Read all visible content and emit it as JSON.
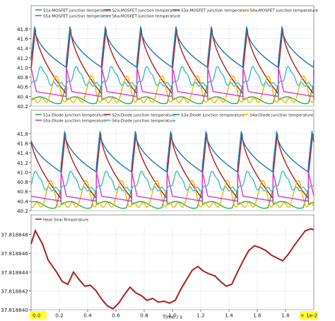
{
  "chart_data": [
    {
      "type": "line",
      "title": "",
      "ylim": [
        40.2,
        41.9
      ],
      "y_ticks": [
        "41.8",
        "41.6",
        "41.4",
        "41.2",
        "41.0",
        "40.8",
        "40.6",
        "40.4",
        "40.2"
      ],
      "legend": [
        "S1a:MOSFET junction temperature",
        "S2a:MOSFET junction temperature",
        "S3a:MOSFET junction temperature",
        "S4a:MOSFET junction temperature",
        "S5a:MOSFET junction temperature",
        "S6a:MOSFET junction temperature"
      ],
      "series": [
        {
          "name": "S1a:MOSFET junction temperature",
          "color": "#22b14c"
        },
        {
          "name": "S2a:MOSFET junction temperature",
          "color": "#b01e1e"
        },
        {
          "name": "S3a:MOSFET junction temperature",
          "color": "#1f77b4"
        },
        {
          "name": "S4a:MOSFET junction temperature",
          "color": "#f2b705"
        },
        {
          "name": "S5a:MOSFET junction temperature",
          "color": "#d63ad6"
        },
        {
          "name": "S6a:MOSFET junction temperature",
          "color": "#3dbfbf"
        }
      ],
      "periods": 8
    },
    {
      "type": "line",
      "title": "",
      "ylim": [
        40.2,
        41.9
      ],
      "y_ticks": [
        "41.8",
        "41.6",
        "41.4",
        "41.2",
        "41.0",
        "40.8",
        "40.6",
        "40.4",
        "40.2"
      ],
      "legend": [
        "S1a:Diode junction temperature",
        "S2a:Diode junction temperature",
        "S3a:Diode junction temperature",
        "S4a:Diode junction temperature",
        "S5a:Diode junction temperature",
        "S6a:Diode junction temperature"
      ],
      "series": [
        {
          "name": "S1a:Diode junction temperature",
          "color": "#22b14c"
        },
        {
          "name": "S2a:Diode junction temperature",
          "color": "#b01e1e"
        },
        {
          "name": "S3a:Diode junction temperature",
          "color": "#1f77b4"
        },
        {
          "name": "S4a:Diode junction temperature",
          "color": "#f2b705"
        },
        {
          "name": "S5a:Diode junction temperature",
          "color": "#d63ad6"
        },
        {
          "name": "S6a:Diode junction temperature",
          "color": "#3dbfbf"
        }
      ],
      "periods": 8
    },
    {
      "type": "line",
      "title": "",
      "ylim": [
        37.81884,
        37.8188488
      ],
      "y_ticks": [
        "37.818848",
        "37.818846",
        "37.818844",
        "37.818842",
        "37.818840"
      ],
      "legend": [
        "Heat Sink:Temperature"
      ],
      "series": [
        {
          "name": "Heat Sink:Temperature",
          "color": "#b01e1e",
          "x": [
            0.0,
            0.03,
            0.08,
            0.12,
            0.18,
            0.22,
            0.26,
            0.3,
            0.34,
            0.38,
            0.42,
            0.46,
            0.5,
            0.54,
            0.58,
            0.62,
            0.66,
            0.7,
            0.74,
            0.78,
            0.82,
            0.86,
            0.9,
            0.94,
            0.98,
            1.02,
            1.06,
            1.1,
            1.14,
            1.18,
            1.22,
            1.26,
            1.3,
            1.34,
            1.38,
            1.42,
            1.46,
            1.5,
            1.54,
            1.58,
            1.62,
            1.66,
            1.7,
            1.74,
            1.78,
            1.82,
            1.86,
            1.9,
            1.94,
            1.98,
            2.0
          ],
          "y": [
            37.818847,
            37.8188484,
            37.818847,
            37.8188453,
            37.818844,
            37.818843,
            37.8188427,
            37.818844,
            37.8188432,
            37.8188425,
            37.8188426,
            37.818842,
            37.8188411,
            37.8188404,
            37.8188401,
            37.8188407,
            37.8188416,
            37.8188424,
            37.8188418,
            37.8188415,
            37.818841,
            37.8188412,
            37.8188408,
            37.8188409,
            37.8188407,
            37.818841,
            37.8188422,
            37.8188432,
            37.8188442,
            37.8188446,
            37.8188441,
            37.8188438,
            37.8188436,
            37.818843,
            37.8188425,
            37.8188427,
            37.818844,
            37.8188452,
            37.8188463,
            37.8188468,
            37.8188466,
            37.8188463,
            37.8188458,
            37.8188455,
            37.8188452,
            37.8188459,
            37.8188468,
            37.8188476,
            37.8188484,
            37.8188486,
            37.8188485
          ]
        }
      ],
      "xlim": [
        0.0,
        2.0
      ],
      "x_ticks": [
        "0.0",
        "0.2",
        "0.4",
        "0.6",
        "0.8",
        "1.0",
        "1.2",
        "1.4",
        "1.6",
        "1.8"
      ],
      "xlabel": "Time / s",
      "x_scale_label": "× 1e-2",
      "highlight_color": "#ffff33"
    }
  ]
}
